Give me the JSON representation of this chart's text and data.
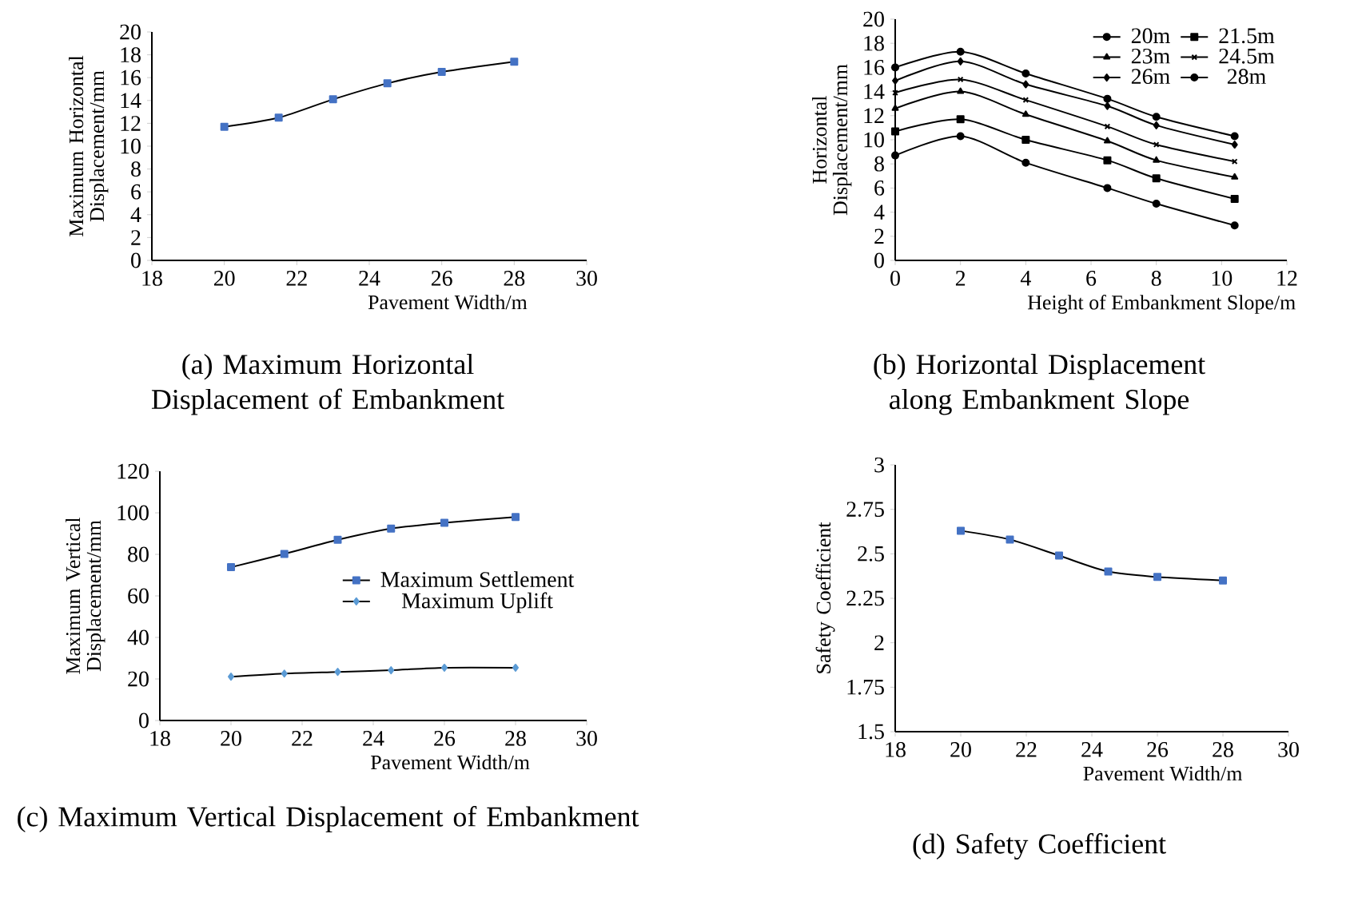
{
  "chart_data": [
    {
      "type": "line",
      "title": "(a) Maximum Horizontal Displacement of Embankment",
      "xlabel": "Pavement Width/m",
      "ylabel": "Maximum Horizontal Displacement/mm",
      "xlim": [
        18,
        30
      ],
      "ylim": [
        0,
        20
      ],
      "xticks": [
        18,
        20,
        22,
        24,
        26,
        28,
        30
      ],
      "yticks": [
        0,
        2,
        4,
        6,
        8,
        10,
        12,
        14,
        16,
        18,
        20
      ],
      "series": [
        {
          "color": "#4472c4",
          "marker": "square",
          "x": [
            20,
            21.5,
            23,
            24.5,
            26,
            28
          ],
          "values": [
            11.7,
            12.5,
            14.1,
            15.5,
            16.5,
            17.4
          ]
        }
      ]
    },
    {
      "type": "line",
      "title": "(b) Horizontal Displacement along Embankment Slope",
      "xlabel": "Height of Embankment Slope/m",
      "ylabel": "Horizontal Displacement/mm",
      "xlim": [
        0,
        12
      ],
      "ylim": [
        0,
        20
      ],
      "xticks": [
        0,
        2,
        4,
        6,
        8,
        10,
        12
      ],
      "yticks": [
        0,
        2,
        4,
        6,
        8,
        10,
        12,
        14,
        16,
        18,
        20
      ],
      "legend": "top right",
      "series": [
        {
          "name": "20m",
          "color": "#000000",
          "marker": "circle",
          "x": [
            0,
            2,
            4,
            6.5,
            8,
            10.4
          ],
          "values": [
            8.7,
            10.3,
            8.1,
            6.0,
            4.7,
            2.9
          ]
        },
        {
          "name": "21.5m",
          "color": "#000000",
          "marker": "square",
          "x": [
            0,
            2,
            4,
            6.5,
            8,
            10.4
          ],
          "values": [
            10.7,
            11.7,
            10.0,
            8.3,
            6.8,
            5.1
          ]
        },
        {
          "name": "23m",
          "color": "#000000",
          "marker": "triangle",
          "x": [
            0,
            2,
            4,
            6.5,
            8,
            10.4
          ],
          "values": [
            12.6,
            14.0,
            12.1,
            9.9,
            8.3,
            6.9
          ]
        },
        {
          "name": "24.5m",
          "color": "#000000",
          "marker": "cross",
          "x": [
            0,
            2,
            4,
            6.5,
            8,
            10.4
          ],
          "values": [
            13.9,
            15.0,
            13.3,
            11.1,
            9.6,
            8.2
          ]
        },
        {
          "name": "26m",
          "color": "#000000",
          "marker": "diamond",
          "x": [
            0,
            2,
            4,
            6.5,
            8,
            10.4
          ],
          "values": [
            14.9,
            16.5,
            14.6,
            12.8,
            11.2,
            9.6
          ]
        },
        {
          "name": "28m",
          "color": "#000000",
          "marker": "circle",
          "x": [
            0,
            2,
            4,
            6.5,
            8,
            10.4
          ],
          "values": [
            16.0,
            17.3,
            15.5,
            13.4,
            11.9,
            10.3
          ]
        }
      ]
    },
    {
      "type": "line",
      "title": "(c) Maximum Vertical Displacement of Embankment",
      "xlabel": "Pavement Width/m",
      "ylabel": "Maximum Vertical Displacement/mm",
      "xlim": [
        18,
        30
      ],
      "ylim": [
        0,
        120
      ],
      "xticks": [
        18,
        20,
        22,
        24,
        26,
        28,
        30
      ],
      "yticks": [
        0,
        20,
        40,
        60,
        80,
        100,
        120
      ],
      "legend": "right",
      "series": [
        {
          "name": "Maximum Settlement",
          "color": "#4472c4",
          "marker": "square",
          "x": [
            20,
            21.5,
            23,
            24.5,
            26,
            28
          ],
          "values": [
            73.8,
            80.2,
            87,
            92.4,
            95.2,
            98
          ]
        },
        {
          "name": "Maximum Uplift",
          "color": "#5b9bd5",
          "marker": "diamond",
          "x": [
            20,
            21.5,
            23,
            24.5,
            26,
            28
          ],
          "values": [
            21.1,
            22.6,
            23.4,
            24.2,
            25.4,
            25.4
          ]
        }
      ]
    },
    {
      "type": "line",
      "title": "(d) Safety Coefficient",
      "xlabel": "Pavement Width/m",
      "ylabel": "Safety Coefficient",
      "xlim": [
        18,
        30
      ],
      "ylim": [
        1.5,
        3
      ],
      "xticks": [
        18,
        20,
        22,
        24,
        26,
        28,
        30
      ],
      "yticks": [
        1.5,
        1.75,
        2,
        2.25,
        2.5,
        2.75,
        3
      ],
      "series": [
        {
          "color": "#4472c4",
          "marker": "square",
          "x": [
            20,
            21.5,
            23,
            24.5,
            26,
            28
          ],
          "values": [
            2.63,
            2.58,
            2.49,
            2.4,
            2.37,
            2.35
          ]
        }
      ]
    }
  ]
}
